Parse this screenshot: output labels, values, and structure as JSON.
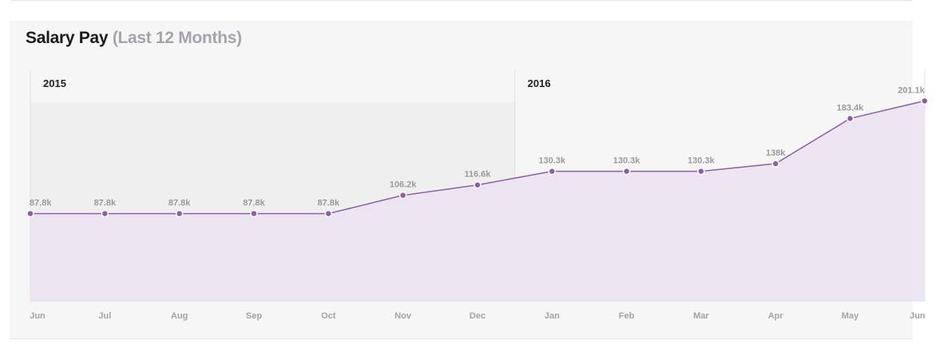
{
  "title": "Salary Pay",
  "subtitle": "(Last 12 Months)",
  "colors": {
    "line": "#8e5ea8",
    "point": "#8e5ea8",
    "area": "#ebe3f1",
    "period_band": "#efefef",
    "label": "#9a9a9a"
  },
  "chart_data": {
    "type": "area",
    "categories": [
      "Jun",
      "Jul",
      "Aug",
      "Sep",
      "Oct",
      "Nov",
      "Dec",
      "Jan",
      "Feb",
      "Mar",
      "Apr",
      "May",
      "Jun"
    ],
    "series": [
      {
        "values": [
          87.8,
          87.8,
          87.8,
          87.8,
          87.8,
          106.2,
          116.6,
          130.3,
          130.3,
          130.3,
          138,
          183.4,
          201.1
        ],
        "labels": [
          "87.8k",
          "87.8k",
          "87.8k",
          "87.8k",
          "87.8k",
          "106.2k",
          "116.6k",
          "130.3k",
          "130.3k",
          "130.3k",
          "138k",
          "183.4k",
          "201.1k"
        ]
      }
    ],
    "periods": [
      {
        "label": "2015",
        "start_index": 0,
        "end_index": 6.5
      },
      {
        "label": "2016",
        "start_index": 6.5,
        "end_index": 12
      }
    ],
    "ylim": [
      0,
      260
    ],
    "xlabel": "",
    "ylabel": "",
    "grid": false,
    "legend": "none"
  }
}
